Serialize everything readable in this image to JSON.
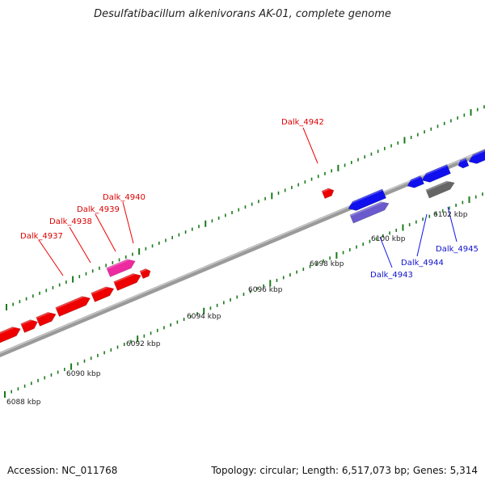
{
  "title": "Desulfatibacillum alkenivorans AK-01, complete genome",
  "footer": {
    "accession": "Accession: NC_011768",
    "summary": "Topology: circular; Length: 6,517,073 bp; Genes: 5,314"
  },
  "colors": {
    "forward_gene": "#ee0000",
    "reverse_gene": "#1010ee",
    "rna_gene": "#ee2aa0",
    "other_feature": "#6a5acd",
    "pseudo": "#666666",
    "ticks": "#1a7a1a",
    "backbone": "#808080"
  },
  "scale_labels": [
    "6088 kbp",
    "6090 kbp",
    "6092 kbp",
    "6094 kbp",
    "6096 kbp",
    "6098 kbp",
    "6100 kbp",
    "6102 kbp"
  ],
  "gene_labels": [
    {
      "text": "Dalk_4937",
      "strand": "forward"
    },
    {
      "text": "Dalk_4938",
      "strand": "forward"
    },
    {
      "text": "Dalk_4939",
      "strand": "forward"
    },
    {
      "text": "Dalk_4940",
      "strand": "forward"
    },
    {
      "text": "Dalk_4942",
      "strand": "forward"
    },
    {
      "text": "Dalk_4943",
      "strand": "reverse"
    },
    {
      "text": "Dalk_4944",
      "strand": "reverse"
    },
    {
      "text": "Dalk_4945",
      "strand": "reverse"
    }
  ]
}
